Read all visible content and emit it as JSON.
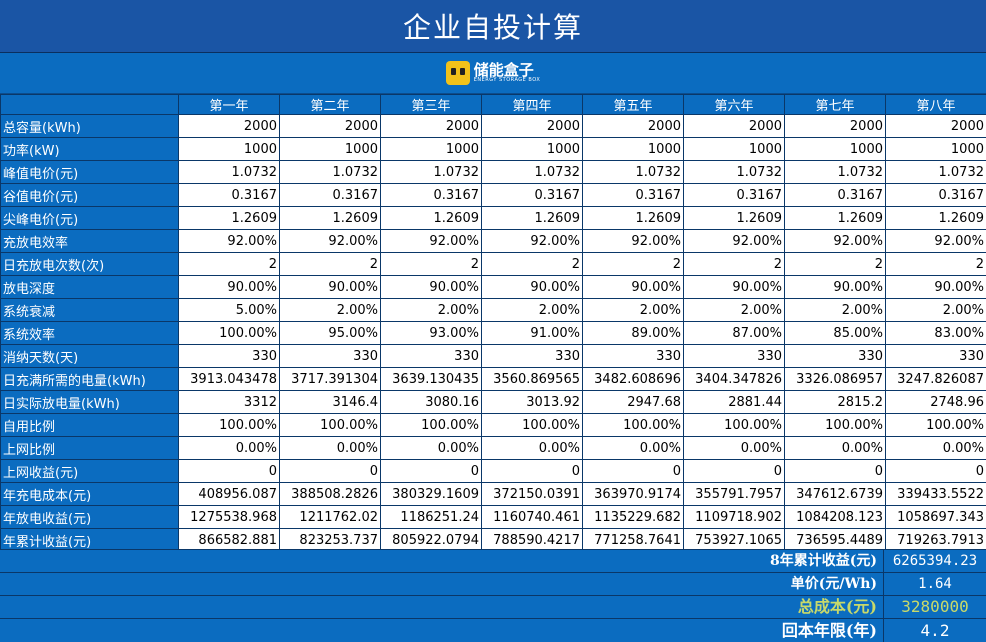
{
  "title": "企业自投计算",
  "logo": {
    "text_cn": "储能盒子",
    "text_en": "ENERGY STORAGE BOX"
  },
  "years": [
    "第一年",
    "第二年",
    "第三年",
    "第四年",
    "第五年",
    "第六年",
    "第七年",
    "第八年"
  ],
  "rows": [
    {
      "label": "总容量(kWh)",
      "values": [
        "2000",
        "2000",
        "2000",
        "2000",
        "2000",
        "2000",
        "2000",
        "2000"
      ]
    },
    {
      "label": "功率(kW)",
      "values": [
        "1000",
        "1000",
        "1000",
        "1000",
        "1000",
        "1000",
        "1000",
        "1000"
      ]
    },
    {
      "label": "峰值电价(元)",
      "values": [
        "1.0732",
        "1.0732",
        "1.0732",
        "1.0732",
        "1.0732",
        "1.0732",
        "1.0732",
        "1.0732"
      ]
    },
    {
      "label": "谷值电价(元)",
      "values": [
        "0.3167",
        "0.3167",
        "0.3167",
        "0.3167",
        "0.3167",
        "0.3167",
        "0.3167",
        "0.3167"
      ]
    },
    {
      "label": "尖峰电价(元)",
      "values": [
        "1.2609",
        "1.2609",
        "1.2609",
        "1.2609",
        "1.2609",
        "1.2609",
        "1.2609",
        "1.2609"
      ]
    },
    {
      "label": "充放电效率",
      "values": [
        "92.00%",
        "92.00%",
        "92.00%",
        "92.00%",
        "92.00%",
        "92.00%",
        "92.00%",
        "92.00%"
      ]
    },
    {
      "label": "日充放电次数(次)",
      "values": [
        "2",
        "2",
        "2",
        "2",
        "2",
        "2",
        "2",
        "2"
      ]
    },
    {
      "label": "放电深度",
      "values": [
        "90.00%",
        "90.00%",
        "90.00%",
        "90.00%",
        "90.00%",
        "90.00%",
        "90.00%",
        "90.00%"
      ]
    },
    {
      "label": "系统衰减",
      "values": [
        "5.00%",
        "2.00%",
        "2.00%",
        "2.00%",
        "2.00%",
        "2.00%",
        "2.00%",
        "2.00%"
      ]
    },
    {
      "label": "系统效率",
      "values": [
        "100.00%",
        "95.00%",
        "93.00%",
        "91.00%",
        "89.00%",
        "87.00%",
        "85.00%",
        "83.00%"
      ]
    },
    {
      "label": "消纳天数(天)",
      "values": [
        "330",
        "330",
        "330",
        "330",
        "330",
        "330",
        "330",
        "330"
      ]
    },
    {
      "label": "日充满所需的电量(kWh)",
      "values": [
        "3913.043478",
        "3717.391304",
        "3639.130435",
        "3560.869565",
        "3482.608696",
        "3404.347826",
        "3326.086957",
        "3247.826087"
      ]
    },
    {
      "label": "日实际放电量(kWh)",
      "values": [
        "3312",
        "3146.4",
        "3080.16",
        "3013.92",
        "2947.68",
        "2881.44",
        "2815.2",
        "2748.96"
      ]
    },
    {
      "label": "自用比例",
      "values": [
        "100.00%",
        "100.00%",
        "100.00%",
        "100.00%",
        "100.00%",
        "100.00%",
        "100.00%",
        "100.00%"
      ]
    },
    {
      "label": "上网比例",
      "values": [
        "0.00%",
        "0.00%",
        "0.00%",
        "0.00%",
        "0.00%",
        "0.00%",
        "0.00%",
        "0.00%"
      ]
    },
    {
      "label": "上网收益(元)",
      "values": [
        "0",
        "0",
        "0",
        "0",
        "0",
        "0",
        "0",
        "0"
      ]
    },
    {
      "label": "年充电成本(元)",
      "values": [
        "408956.087",
        "388508.2826",
        "380329.1609",
        "372150.0391",
        "363970.9174",
        "355791.7957",
        "347612.6739",
        "339433.5522"
      ]
    },
    {
      "label": "年放电收益(元)",
      "values": [
        "1275538.968",
        "1211762.02",
        "1186251.24",
        "1160740.461",
        "1135229.682",
        "1109718.902",
        "1084208.123",
        "1058697.343"
      ]
    },
    {
      "label": "年累计收益(元)",
      "values": [
        "866582.881",
        "823253.737",
        "805922.0794",
        "788590.4217",
        "771258.7641",
        "753927.1065",
        "736595.4489",
        "719263.7913"
      ]
    }
  ],
  "summary": {
    "total_label": "8年累计收益(元)",
    "total_value": "6265394.23",
    "unit_price_label": "单价(元/Wh)",
    "unit_price_value": "1.64",
    "cost_label": "总成本(元)",
    "cost_value": "3280000",
    "payback_label": "回本年限(年)",
    "payback_value": "4.2"
  }
}
